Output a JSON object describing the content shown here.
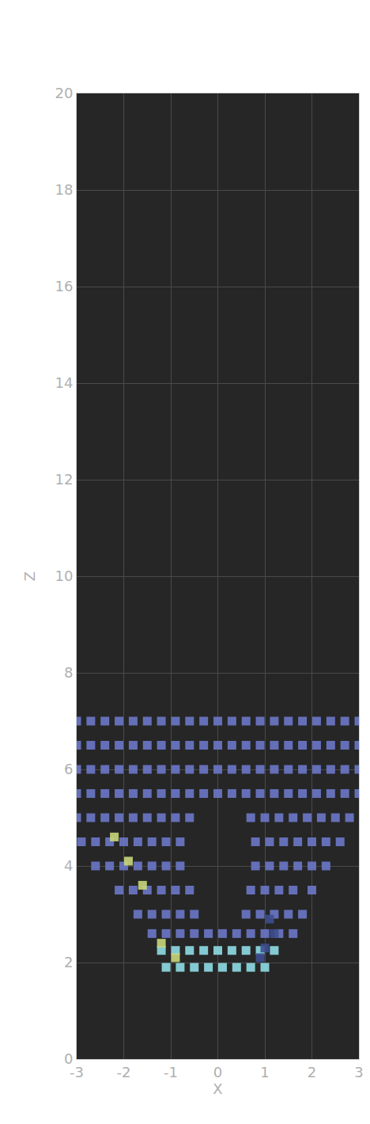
{
  "chart_data": {
    "type": "scatter",
    "x_label": "X",
    "y_label": "Z",
    "xlim": [
      -3,
      3
    ],
    "xticks": [
      -3,
      -2,
      -1,
      0,
      1,
      2,
      3
    ],
    "ylim": [
      0,
      20
    ],
    "yticks": [
      0,
      2,
      4,
      6,
      8,
      10,
      12,
      14,
      16,
      18,
      20
    ],
    "grid": true,
    "marker": "square",
    "series": [
      {
        "color": "#6b78c9",
        "x": [
          -1.4,
          -1.1,
          -0.8,
          -0.5,
          -0.2,
          0.1,
          0.4,
          0.7,
          1,
          1.3,
          1.6,
          -1.7,
          -1.4,
          -1.1,
          -0.8,
          -0.5,
          0.6,
          0.9,
          1.2,
          1.5,
          1.8,
          -2.1,
          -1.8,
          -1.5,
          -1.2,
          -0.9,
          -0.6,
          0.7,
          1,
          1.3,
          1.6,
          2,
          -2.6,
          -2.3,
          -2,
          -1.7,
          -1.4,
          -1.1,
          -0.8,
          0.8,
          1.1,
          1.4,
          1.7,
          2,
          2.3,
          -2.9,
          -2.6,
          -2.3,
          -2,
          -1.7,
          -1.4,
          -1.1,
          -0.8,
          0.8,
          1.1,
          1.4,
          1.7,
          2,
          2.3,
          2.6,
          -3,
          -2.7,
          -2.4,
          -2.1,
          -1.8,
          -1.5,
          -1.2,
          -0.9,
          -0.6,
          0.7,
          1,
          1.3,
          1.6,
          1.9,
          2.2,
          2.5,
          2.8,
          -3,
          -2.7,
          -2.4,
          -2.1,
          -1.8,
          -1.5,
          -1.2,
          -0.9,
          -0.6,
          -0.3,
          0,
          0.3,
          0.6,
          0.9,
          1.2,
          1.5,
          1.8,
          2.1,
          2.4,
          2.7,
          3,
          -3,
          -2.7,
          -2.4,
          -2.1,
          -1.8,
          -1.5,
          -1.2,
          -0.9,
          -0.6,
          -0.3,
          0,
          0.3,
          0.6,
          0.9,
          1.2,
          1.5,
          1.8,
          2.1,
          2.4,
          2.7,
          3,
          -3,
          -2.7,
          -2.4,
          -2.1,
          -1.8,
          -1.5,
          -1.2,
          -0.9,
          -0.6,
          -0.3,
          0,
          0.3,
          0.6,
          0.9,
          1.2,
          1.5,
          1.8,
          2.1,
          2.4,
          2.7,
          3,
          -3,
          -2.7,
          -2.4,
          -2.1,
          -1.8,
          -1.5,
          -1.2,
          -0.9,
          -0.6,
          -0.3,
          0,
          0.3,
          0.6,
          0.9,
          1.2,
          1.5,
          1.8,
          2.1,
          2.4,
          2.7,
          3
        ],
        "values": [
          2.6,
          2.6,
          2.6,
          2.6,
          2.6,
          2.6,
          2.6,
          2.6,
          2.6,
          2.6,
          2.6,
          3,
          3,
          3,
          3,
          3,
          3,
          3,
          3,
          3,
          3,
          3.5,
          3.5,
          3.5,
          3.5,
          3.5,
          3.5,
          3.5,
          3.5,
          3.5,
          3.5,
          3.5,
          4,
          4,
          4,
          4,
          4,
          4,
          4,
          4,
          4,
          4,
          4,
          4,
          4,
          4.5,
          4.5,
          4.5,
          4.5,
          4.5,
          4.5,
          4.5,
          4.5,
          4.5,
          4.5,
          4.5,
          4.5,
          4.5,
          4.5,
          4.5,
          5,
          5,
          5,
          5,
          5,
          5,
          5,
          5,
          5,
          5,
          5,
          5,
          5,
          5,
          5,
          5,
          5,
          5.5,
          5.5,
          5.5,
          5.5,
          5.5,
          5.5,
          5.5,
          5.5,
          5.5,
          5.5,
          5.5,
          5.5,
          5.5,
          5.5,
          5.5,
          5.5,
          5.5,
          5.5,
          5.5,
          5.5,
          5.5,
          6,
          6,
          6,
          6,
          6,
          6,
          6,
          6,
          6,
          6,
          6,
          6,
          6,
          6,
          6,
          6,
          6,
          6,
          6,
          6,
          6,
          6.5,
          6.5,
          6.5,
          6.5,
          6.5,
          6.5,
          6.5,
          6.5,
          6.5,
          6.5,
          6.5,
          6.5,
          6.5,
          6.5,
          6.5,
          6.5,
          6.5,
          6.5,
          6.5,
          6.5,
          6.5,
          7,
          7,
          7,
          7,
          7,
          7,
          7,
          7,
          7,
          7,
          7,
          7,
          7,
          7,
          7,
          7,
          7,
          7,
          7,
          7,
          7
        ]
      },
      {
        "color": "#8fdde6",
        "x": [
          -1.1,
          -0.8,
          -0.5,
          -0.2,
          0.1,
          0.4,
          0.7,
          1,
          -1.2,
          -0.9,
          -0.6,
          -0.3,
          0,
          0.3,
          0.6,
          0.9,
          1.2
        ],
        "values": [
          1.9,
          1.9,
          1.9,
          1.9,
          1.9,
          1.9,
          1.9,
          1.9,
          2.25,
          2.25,
          2.25,
          2.25,
          2.25,
          2.25,
          2.25,
          2.25,
          2.25
        ]
      },
      {
        "color": "#c9d67a",
        "x": [
          -1.6,
          -1.9,
          -1.2,
          -0.9,
          -2.2
        ],
        "values": [
          3.6,
          4.1,
          2.4,
          2.1,
          4.6
        ]
      },
      {
        "color": "#3e4f8f",
        "x": [
          1,
          1.2,
          1.1,
          0.9
        ],
        "values": [
          2.3,
          2.6,
          2.9,
          2.1
        ]
      }
    ]
  }
}
